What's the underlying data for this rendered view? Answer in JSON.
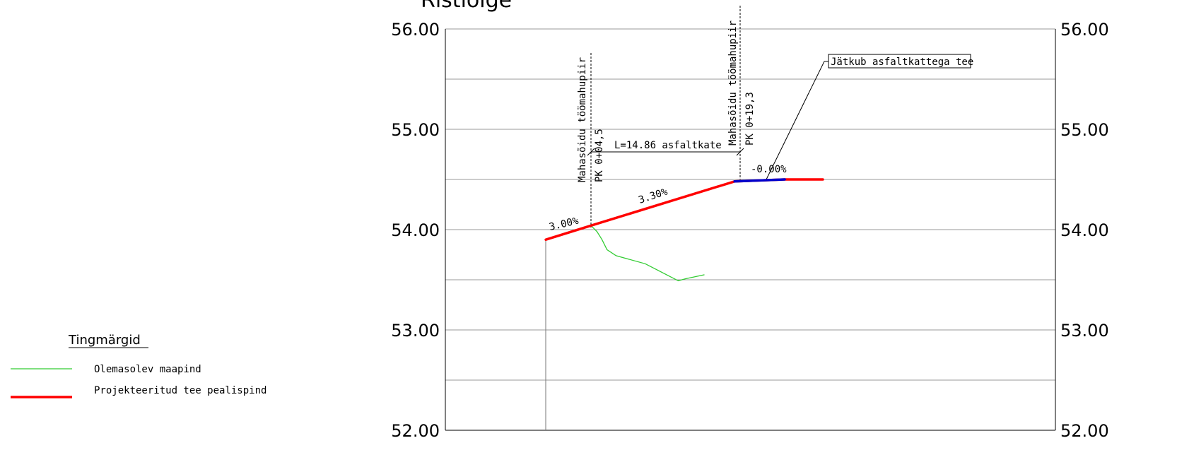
{
  "drawing": {
    "title": "Ristlõige",
    "y_labels": [
      "56.00",
      "55.00",
      "54.00",
      "53.00",
      "52.00"
    ],
    "colors": {
      "existing_ground": "#33cc33",
      "designed_road": "#ff0000",
      "curve": "#0000cc",
      "grid": "#999999"
    }
  },
  "annotations": {
    "limit1_name": "Mahasõidu töömahupiir",
    "limit1_pk": "PK 0+04,5",
    "limit2_name": "Mahasõidu töömahupiir",
    "limit2_pk": "PK 0+19,3",
    "length": "L=14.86 asfaltkate",
    "continue": "Jätkub asfaltkattega tee",
    "slope1": "3.00%",
    "slope2": "3.30%",
    "slope3": "-0.00%"
  },
  "legend": {
    "title": "Tingmärgid",
    "items": [
      {
        "label": "Olemasolev maapind",
        "color": "#33cc33"
      },
      {
        "label": "Projekteeritud tee pealispind",
        "color": "#ff0000"
      }
    ]
  },
  "chart_data": {
    "type": "line",
    "ylim": [
      52.0,
      56.0
    ],
    "series": [
      {
        "name": "Olemasolev maapind",
        "x": [
          0.0,
          0.6,
          1.1,
          1.6,
          2.5,
          5.4,
          8.7,
          9.4,
          11.3
        ],
        "y": [
          54.04,
          53.98,
          53.9,
          53.8,
          53.74,
          53.66,
          53.49,
          53.51,
          53.55
        ]
      },
      {
        "name": "Projekteeritud tee pealispind",
        "x": [
          -4.5,
          0.0,
          14.3,
          19.3,
          23.1
        ],
        "y": [
          53.9,
          54.04,
          54.48,
          54.5,
          54.5
        ]
      }
    ]
  }
}
